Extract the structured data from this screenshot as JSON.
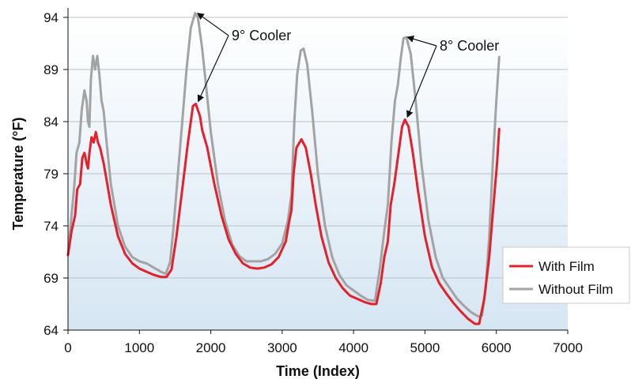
{
  "chart_data": {
    "type": "line",
    "title": "",
    "xlabel": "Time (Index)",
    "ylabel": "Temperature (°F)",
    "xlim": [
      0,
      7000
    ],
    "ylim": [
      64,
      94
    ],
    "xticks": [
      0,
      1000,
      2000,
      3000,
      4000,
      5000,
      6000,
      7000
    ],
    "yticks": [
      64,
      69,
      74,
      79,
      84,
      89,
      94
    ],
    "xtick_labels": [
      "0",
      "1000",
      "2000",
      "3000",
      "4000",
      "5000",
      "6000",
      "7000"
    ],
    "ytick_labels": [
      "64",
      "69",
      "74",
      "79",
      "84",
      "89",
      "94"
    ],
    "grid": "horizontal",
    "legend_position": "bottom-right",
    "background": "light blue vertical gradient",
    "series": [
      {
        "name": "With Film",
        "color": "#e4202a",
        "points": [
          [
            0,
            71.2
          ],
          [
            50,
            73.5
          ],
          [
            100,
            75.0
          ],
          [
            130,
            77.5
          ],
          [
            170,
            78.0
          ],
          [
            200,
            80.5
          ],
          [
            230,
            81.0
          ],
          [
            260,
            80.0
          ],
          [
            280,
            79.5
          ],
          [
            300,
            81.0
          ],
          [
            330,
            82.5
          ],
          [
            360,
            82.0
          ],
          [
            390,
            83.0
          ],
          [
            420,
            82.0
          ],
          [
            450,
            81.5
          ],
          [
            500,
            80.0
          ],
          [
            550,
            78.0
          ],
          [
            600,
            76.0
          ],
          [
            700,
            73.0
          ],
          [
            800,
            71.3
          ],
          [
            900,
            70.4
          ],
          [
            1000,
            69.9
          ],
          [
            1100,
            69.6
          ],
          [
            1200,
            69.3
          ],
          [
            1300,
            69.1
          ],
          [
            1380,
            69.1
          ],
          [
            1450,
            69.8
          ],
          [
            1520,
            73.0
          ],
          [
            1600,
            77.5
          ],
          [
            1680,
            82.0
          ],
          [
            1750,
            85.5
          ],
          [
            1790,
            85.7
          ],
          [
            1850,
            84.5
          ],
          [
            1880,
            83.2
          ],
          [
            1950,
            81.5
          ],
          [
            2050,
            78.0
          ],
          [
            2150,
            75.0
          ],
          [
            2250,
            72.7
          ],
          [
            2350,
            71.3
          ],
          [
            2450,
            70.4
          ],
          [
            2550,
            70.0
          ],
          [
            2650,
            69.9
          ],
          [
            2750,
            70.0
          ],
          [
            2850,
            70.3
          ],
          [
            2950,
            71.0
          ],
          [
            3050,
            72.5
          ],
          [
            3100,
            74.5
          ],
          [
            3130,
            75.5
          ],
          [
            3160,
            79.0
          ],
          [
            3200,
            81.5
          ],
          [
            3270,
            82.3
          ],
          [
            3330,
            81.5
          ],
          [
            3400,
            79.0
          ],
          [
            3470,
            76.0
          ],
          [
            3550,
            73.0
          ],
          [
            3650,
            70.5
          ],
          [
            3750,
            69.0
          ],
          [
            3850,
            68.0
          ],
          [
            3950,
            67.3
          ],
          [
            4050,
            67.0
          ],
          [
            4150,
            66.7
          ],
          [
            4250,
            66.5
          ],
          [
            4320,
            66.5
          ],
          [
            4380,
            68.5
          ],
          [
            4430,
            71.0
          ],
          [
            4480,
            72.5
          ],
          [
            4520,
            76.0
          ],
          [
            4570,
            78.0
          ],
          [
            4620,
            80.5
          ],
          [
            4680,
            83.5
          ],
          [
            4720,
            84.2
          ],
          [
            4770,
            83.5
          ],
          [
            4830,
            81.0
          ],
          [
            4900,
            77.5
          ],
          [
            5000,
            73.0
          ],
          [
            5100,
            70.0
          ],
          [
            5200,
            68.5
          ],
          [
            5300,
            67.5
          ],
          [
            5400,
            66.6
          ],
          [
            5500,
            65.8
          ],
          [
            5600,
            65.1
          ],
          [
            5700,
            64.6
          ],
          [
            5760,
            64.6
          ],
          [
            5830,
            67.0
          ],
          [
            5900,
            71.0
          ],
          [
            5960,
            76.0
          ],
          [
            6010,
            80.0
          ],
          [
            6040,
            83.3
          ]
        ]
      },
      {
        "name": "Without Film",
        "color": "#a3a3a3",
        "points": [
          [
            0,
            71.2
          ],
          [
            50,
            75.0
          ],
          [
            90,
            78.0
          ],
          [
            120,
            81.0
          ],
          [
            160,
            82.0
          ],
          [
            190,
            85.0
          ],
          [
            230,
            87.0
          ],
          [
            260,
            86.0
          ],
          [
            280,
            84.0
          ],
          [
            300,
            83.5
          ],
          [
            320,
            88.0
          ],
          [
            350,
            90.3
          ],
          [
            380,
            89.0
          ],
          [
            410,
            90.3
          ],
          [
            440,
            88.5
          ],
          [
            470,
            86.0
          ],
          [
            500,
            85.0
          ],
          [
            540,
            82.0
          ],
          [
            600,
            78.0
          ],
          [
            700,
            74.0
          ],
          [
            800,
            72.0
          ],
          [
            900,
            71.0
          ],
          [
            1000,
            70.6
          ],
          [
            1100,
            70.4
          ],
          [
            1200,
            70.0
          ],
          [
            1300,
            69.6
          ],
          [
            1370,
            69.4
          ],
          [
            1430,
            70.5
          ],
          [
            1480,
            74.0
          ],
          [
            1540,
            79.0
          ],
          [
            1600,
            84.0
          ],
          [
            1660,
            89.0
          ],
          [
            1720,
            93.0
          ],
          [
            1780,
            94.4
          ],
          [
            1820,
            94.0
          ],
          [
            1880,
            91.0
          ],
          [
            1940,
            87.0
          ],
          [
            2000,
            83.0
          ],
          [
            2100,
            78.0
          ],
          [
            2200,
            74.5
          ],
          [
            2300,
            72.2
          ],
          [
            2400,
            71.1
          ],
          [
            2500,
            70.6
          ],
          [
            2600,
            70.6
          ],
          [
            2700,
            70.6
          ],
          [
            2800,
            70.8
          ],
          [
            2900,
            71.3
          ],
          [
            3000,
            72.3
          ],
          [
            3080,
            74.5
          ],
          [
            3130,
            77.0
          ],
          [
            3170,
            84.0
          ],
          [
            3210,
            88.5
          ],
          [
            3260,
            90.8
          ],
          [
            3300,
            91.0
          ],
          [
            3350,
            89.5
          ],
          [
            3420,
            85.0
          ],
          [
            3500,
            79.0
          ],
          [
            3600,
            74.0
          ],
          [
            3700,
            71.0
          ],
          [
            3800,
            69.3
          ],
          [
            3900,
            68.3
          ],
          [
            4000,
            67.8
          ],
          [
            4100,
            67.3
          ],
          [
            4200,
            66.9
          ],
          [
            4300,
            66.8
          ],
          [
            4370,
            70.0
          ],
          [
            4430,
            73.5
          ],
          [
            4480,
            76.0
          ],
          [
            4530,
            82.0
          ],
          [
            4580,
            86.0
          ],
          [
            4620,
            87.5
          ],
          [
            4660,
            90.0
          ],
          [
            4700,
            92.0
          ],
          [
            4740,
            92.1
          ],
          [
            4800,
            90.5
          ],
          [
            4870,
            86.0
          ],
          [
            4950,
            80.0
          ],
          [
            5050,
            74.5
          ],
          [
            5150,
            71.0
          ],
          [
            5250,
            69.0
          ],
          [
            5350,
            68.0
          ],
          [
            5450,
            67.0
          ],
          [
            5550,
            66.3
          ],
          [
            5650,
            65.7
          ],
          [
            5750,
            65.3
          ],
          [
            5800,
            65.4
          ],
          [
            5850,
            68.0
          ],
          [
            5900,
            73.0
          ],
          [
            5950,
            80.0
          ],
          [
            6000,
            86.0
          ],
          [
            6040,
            90.2
          ]
        ]
      }
    ],
    "annotations": [
      {
        "text": "9° Cooler",
        "targets": [
          [
            1780,
            94.4
          ],
          [
            1790,
            85.7
          ]
        ]
      },
      {
        "text": "8° Cooler",
        "targets": [
          [
            4720,
            92.1
          ],
          [
            4720,
            84.2
          ]
        ]
      }
    ]
  }
}
